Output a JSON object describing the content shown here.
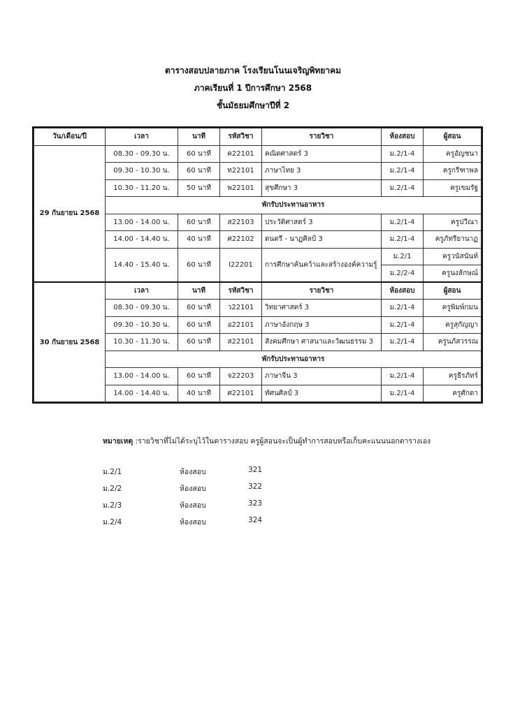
{
  "header": {
    "line1": "ตารางสอบปลายภาค  โรงเรียนโนนเจริญพิทยาคม",
    "line2": "ภาคเรียนที่  1  ปีการศึกษา  2568",
    "line3": "ชั้นมัธยมศึกษาปีที่  2"
  },
  "columns": [
    "วัน/เดือน/ปี",
    "เวลา",
    "นาที",
    "รหัสวิชา",
    "รายวิชา",
    "ห้องสอบ",
    "ผู้สอน"
  ],
  "break_label": "พักรับประทานอาหาร",
  "day1": {
    "date": "29 กันยายน 2568",
    "morning": [
      {
        "time": "08.30 - 09.30 น.",
        "minutes": "60  นาที",
        "code": "ค22101",
        "subject": "คณิตศาสตร์ 3",
        "room": "ม.2/1-4",
        "teacher": "ครูอัญชนา"
      },
      {
        "time": "09.30 - 10.30 น.",
        "minutes": "60  นาที",
        "code": "ท22101",
        "subject": "ภาษาไทย 3",
        "room": "ม.2/1-4",
        "teacher": "ครูกรีฑาพล"
      },
      {
        "time": "10.30 - 11.20 น.",
        "minutes": "50  นาที",
        "code": "พ22101",
        "subject": "สุขศึกษา 3",
        "room": "ม.2/1-4",
        "teacher": "ครูเขมรัฐ"
      }
    ],
    "afternoon": [
      {
        "time": "13.00 - 14.00 น.",
        "minutes": "60  นาที",
        "code": "ส22103",
        "subject": "ประวัติศาสตร์ 3",
        "room": "ม.2/1-4",
        "teacher": "ครูปวีณา"
      },
      {
        "time": "14.00 - 14.40 น.",
        "minutes": "40  นาที",
        "code": "ศ22102",
        "subject": "ดนตรี - นาฏศิลป์ 3",
        "room": "ม.2/1-4",
        "teacher": "ครูภัทรียานาฏ"
      }
    ],
    "split": {
      "time": "14.40 - 15.40 น.",
      "minutes": "60  นาที",
      "code": "I22201",
      "subject": "การศึกษาค้นคว้าและสร้างองค์ความรู้",
      "rooms": [
        {
          "room": "ม.2/1",
          "teacher": "ครูวนัสนันท์"
        },
        {
          "room": "ม.2/2-4",
          "teacher": "ครูนงลักษณ์"
        }
      ]
    }
  },
  "day2": {
    "date": "30 กันยายน 2568",
    "morning": [
      {
        "time": "08.30 - 09.30 น.",
        "minutes": "60  นาที",
        "code": "ว22101",
        "subject": "วิทยาศาสตร์ 3",
        "room": "ม.2/1-4",
        "teacher": "ครูพิมพ์กมน"
      },
      {
        "time": "09.30 - 10.30 น.",
        "minutes": "60  นาที",
        "code": "อ22101",
        "subject": "ภาษาอังกฤษ 3",
        "room": "ม.2/1-4",
        "teacher": "ครูสุกัญญา"
      },
      {
        "time": "10.30 - 11.30 น.",
        "minutes": "60  นาที",
        "code": "ส22101",
        "subject": "สังคมศึกษา ศาสนาและวัฒนธรรม 3",
        "room": "ม.2/1-4",
        "teacher": "ครูนภัสวรรณ"
      }
    ],
    "afternoon": [
      {
        "time": "13.00 - 14.00 น.",
        "minutes": "60  นาที",
        "code": "จ22203",
        "subject": "ภาษาจีน 3",
        "room": "ม.2/1-4",
        "teacher": "ครูธีรภัทร์"
      },
      {
        "time": "14.00 - 14.40 น.",
        "minutes": "40  นาที",
        "code": "ศ22101",
        "subject": "ทัศนศิลป์ 3",
        "room": "ม.2/1-4",
        "teacher": "ครูศักดา"
      }
    ]
  },
  "note": {
    "label": "หมายเหตุ",
    "text": " :รายวิชาที่ไม่ได้ระบุไว้ในตารางสอบ ครูผู้สอนจะเป็นผู้ทำการสอบหรือเก็บคะแนนนอกตารางเอง"
  },
  "exam_rooms": [
    {
      "class": "ม.2/1",
      "label": "ห้องสอบ",
      "room": "321"
    },
    {
      "class": "ม.2/2",
      "label": "ห้องสอบ",
      "room": "322"
    },
    {
      "class": "ม.2/3",
      "label": "ห้องสอบ",
      "room": "323"
    },
    {
      "class": "ม.2/4",
      "label": "ห้องสอบ",
      "room": "324"
    }
  ]
}
